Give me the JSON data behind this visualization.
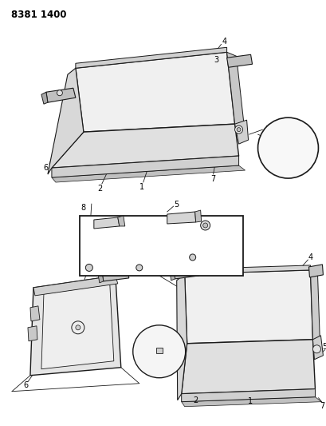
{
  "title_code": "8381 1400",
  "background_color": "#ffffff",
  "line_color": "#1a1a1a",
  "figsize": [
    4.1,
    5.33
  ],
  "dpi": 100,
  "label_fontsize": 7,
  "code_fontsize": 8.5
}
